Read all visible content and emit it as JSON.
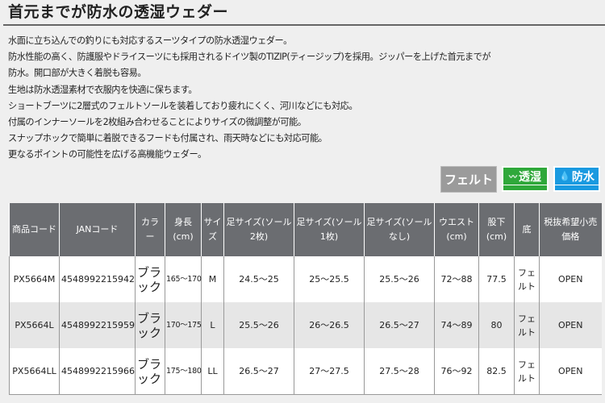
{
  "title": "首元までが防水の透湿ウェダー",
  "description": [
    "水面に立ち込んでの釣りにも対応するスーツタイプの防水透湿ウェダー。",
    "防水性能の高く、防護服やドライスーツにも採用されるドイツ製のTIZIP(ティージップ)を採用。ジッパーを上げた首元までが",
    "防水。開口部が大きく着脱も容易。",
    "生地は防水透湿素材で衣服内を快適に保ちます。",
    "ショートブーツに2層式のフェルトソールを装着しており疲れにくく、河川などにも対応。",
    "付属のインナーソールを2枚組み合わせることによりサイズの微調整が可能。",
    "スナップホックで簡単に着脱できるフードも付属され、雨天時などにも対応可能。",
    "更なるポイントの可能性を広げる高機能ウェダー。"
  ],
  "badges": {
    "felt": "フェルト",
    "breathable": "透湿",
    "waterproof": "防水",
    "breathable_color": "#2fa83a",
    "waterproof_color": "#1a9ae0"
  },
  "table": {
    "headers": [
      "商品コード",
      "JANコード",
      "カラー",
      "身長(cm)",
      "サイズ",
      "足サイズ(ソール2枚)",
      "足サイズ(ソール1枚)",
      "足サイズ(ソールなし)",
      "ウエスト(cm)",
      "股下(cm)",
      "底",
      "税抜希望小売価格"
    ],
    "rows": [
      [
        "PX5664M",
        "4548992215942",
        "ブラック",
        "165〜170",
        "M",
        "24.5〜25",
        "25〜25.5",
        "25.5〜26",
        "72〜88",
        "77.5",
        "フェルト",
        "OPEN"
      ],
      [
        "PX5664L",
        "4548992215959",
        "ブラック",
        "170〜175",
        "L",
        "25.5〜26",
        "26〜26.5",
        "26.5〜27",
        "74〜89",
        "80",
        "フェルト",
        "OPEN"
      ],
      [
        "PX5664LL",
        "4548992215966",
        "ブラック",
        "175〜180",
        "LL",
        "26.5〜27",
        "27〜27.5",
        "27.5〜28",
        "76〜92",
        "82.5",
        "フェルト",
        "OPEN"
      ]
    ]
  }
}
